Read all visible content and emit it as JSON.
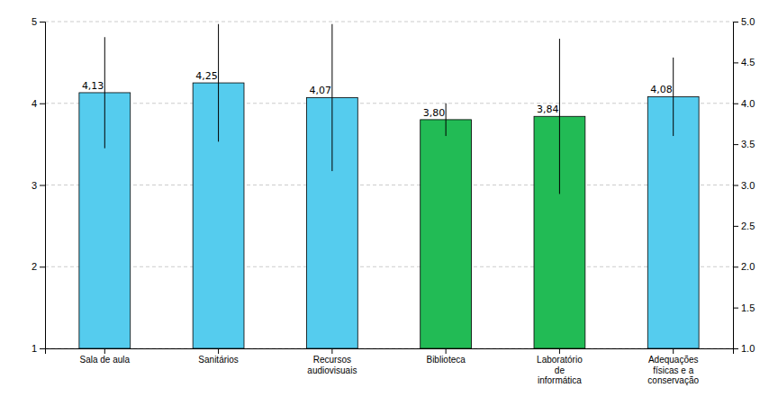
{
  "chart_data": {
    "type": "bar",
    "categories": [
      "Sala de aula",
      "Sanitários",
      "Recursos\naudiovisuais",
      "Biblioteca",
      "Laboratório\nde\ninformática",
      "Adequações\nfísicas e a\nconservação"
    ],
    "values": [
      4.13,
      4.25,
      4.07,
      3.8,
      3.84,
      4.08
    ],
    "value_labels": [
      "4,13",
      "4,25",
      "4,07",
      "3,80",
      "3,84",
      "4,08"
    ],
    "data_labels": true,
    "errors_upper": [
      0.68,
      0.72,
      0.9,
      0.2,
      0.95,
      0.48
    ],
    "errors_lower": [
      0.68,
      0.72,
      0.9,
      0.2,
      0.95,
      0.48
    ],
    "colors": [
      "#55CCEE",
      "#55CCEE",
      "#55CCEE",
      "#22BB55",
      "#22BB55",
      "#55CCEE"
    ],
    "ylim": [
      1,
      5
    ],
    "yticks": [
      1,
      2,
      3,
      4,
      5
    ],
    "y2lim": [
      1,
      5
    ],
    "y2ticks": [
      {
        "value": 1.0,
        "label": "1.0"
      },
      {
        "value": 1.5,
        "label": "1.5"
      },
      {
        "value": 2.0,
        "label": "2.0"
      },
      {
        "value": 2.5,
        "label": "2.5"
      },
      {
        "value": 3.0,
        "label": "3.0"
      },
      {
        "value": 3.5,
        "label": "3.5"
      },
      {
        "value": 4.0,
        "label": "4.0"
      },
      {
        "value": 4.5,
        "label": "4.5"
      },
      {
        "value": 5.0,
        "label": "5.0"
      }
    ],
    "grid": true
  }
}
